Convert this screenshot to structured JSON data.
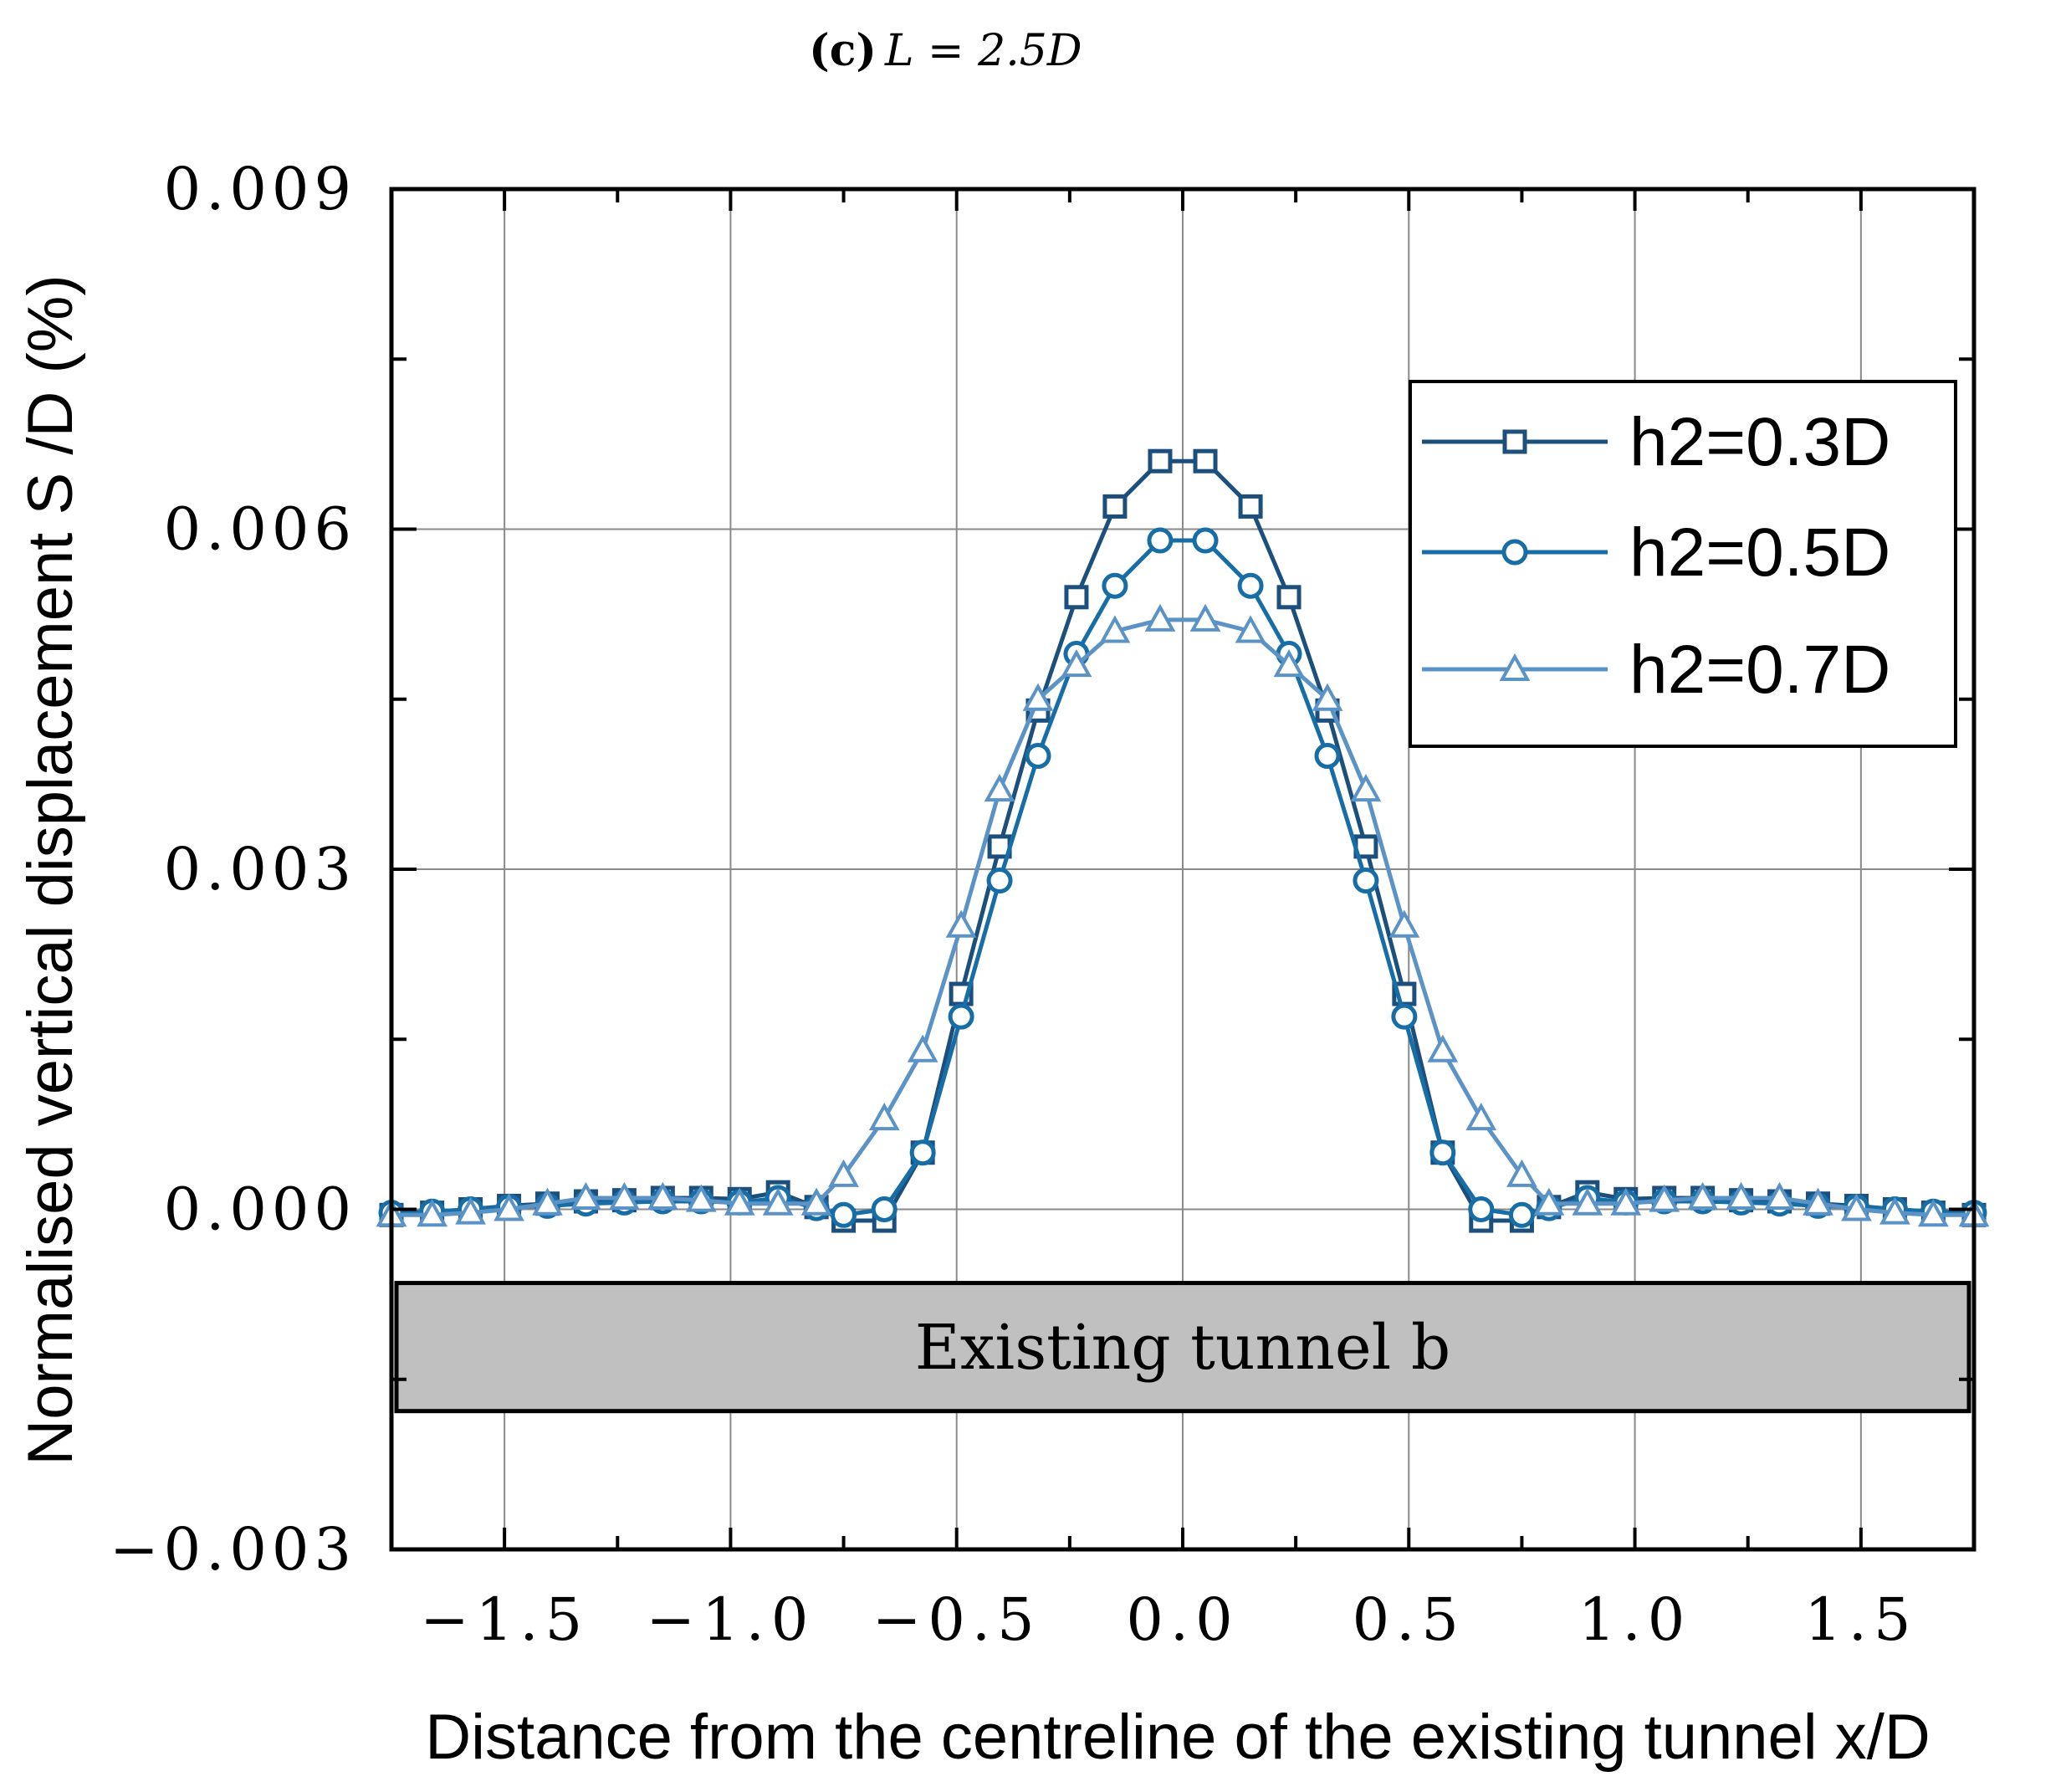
{
  "chart_data": {
    "type": "line",
    "title": {
      "panel": "(c)",
      "text": "L = 2.5D"
    },
    "xlabel": "Distance from the centreline of the existing tunnel x/D",
    "ylabel": "Normalised vertical displacement S /D (%)",
    "xlim": [
      -1.75,
      1.75
    ],
    "ylim": [
      -0.003,
      0.009
    ],
    "xticks": [
      -1.5,
      -1.0,
      -0.5,
      0.0,
      0.5,
      1.0,
      1.5
    ],
    "xtick_labels": [
      "−1.5",
      "−1.0",
      "−0.5",
      "0.0",
      "0.5",
      "1.0",
      "1.5"
    ],
    "yticks": [
      -0.003,
      0.0,
      0.003,
      0.006,
      0.009
    ],
    "ytick_labels": [
      "−0.003",
      "0.000",
      "0.003",
      "0.006",
      "0.009"
    ],
    "grid": true,
    "legend_position": "top-right",
    "annotation": {
      "text": "Existing tunnel b",
      "y_range": [
        -0.00178,
        -0.00065
      ]
    },
    "series": [
      {
        "name": "h2=0.3D",
        "color": "#1c4f7c",
        "marker": "square",
        "x": [
          -1.75,
          -1.66,
          -1.575,
          -1.49,
          -1.405,
          -1.32,
          -1.235,
          -1.15,
          -1.065,
          -0.98,
          -0.895,
          -0.81,
          -0.75,
          -0.66,
          -0.575,
          -0.49,
          -0.405,
          -0.32,
          -0.235,
          -0.15,
          -0.05,
          0.05,
          0.15,
          0.235,
          0.32,
          0.405,
          0.49,
          0.575,
          0.66,
          0.75,
          0.81,
          0.895,
          0.98,
          1.065,
          1.15,
          1.235,
          1.32,
          1.405,
          1.49,
          1.575,
          1.66,
          1.75
        ],
        "y": [
          -5e-05,
          -3e-05,
          0.0,
          3e-05,
          5e-05,
          7e-05,
          8e-05,
          0.0001,
          0.0001,
          9e-05,
          0.00015,
          2e-05,
          -0.0001,
          -0.0001,
          0.0005,
          0.0019,
          0.0032,
          0.0044,
          0.0054,
          0.0062,
          0.0066,
          0.0066,
          0.0062,
          0.0054,
          0.0044,
          0.0032,
          0.0019,
          0.0005,
          -0.0001,
          -0.0001,
          2e-05,
          0.00015,
          9e-05,
          0.0001,
          0.0001,
          8e-05,
          7e-05,
          5e-05,
          3e-05,
          0.0,
          -3e-05,
          -5e-05
        ]
      },
      {
        "name": "h2=0.5D",
        "color": "#176ea6",
        "marker": "circle",
        "x": [
          -1.75,
          -1.66,
          -1.575,
          -1.49,
          -1.405,
          -1.32,
          -1.235,
          -1.15,
          -1.065,
          -0.98,
          -0.895,
          -0.81,
          -0.75,
          -0.66,
          -0.575,
          -0.49,
          -0.405,
          -0.32,
          -0.235,
          -0.15,
          -0.05,
          0.05,
          0.15,
          0.235,
          0.32,
          0.405,
          0.49,
          0.575,
          0.66,
          0.75,
          0.81,
          0.895,
          0.98,
          1.065,
          1.15,
          1.235,
          1.32,
          1.405,
          1.49,
          1.575,
          1.66,
          1.75
        ],
        "y": [
          -3e-05,
          -2e-05,
          0.0,
          2e-05,
          3e-05,
          5e-05,
          6e-05,
          7e-05,
          7e-05,
          6e-05,
          0.0001,
          1e-05,
          -5e-05,
          0.0,
          0.0005,
          0.0017,
          0.0029,
          0.004,
          0.0049,
          0.0055,
          0.0059,
          0.0059,
          0.0055,
          0.0049,
          0.004,
          0.0029,
          0.0017,
          0.0005,
          0.0,
          -5e-05,
          1e-05,
          0.0001,
          6e-05,
          7e-05,
          7e-05,
          6e-05,
          5e-05,
          3e-05,
          2e-05,
          0.0,
          -2e-05,
          -3e-05
        ]
      },
      {
        "name": "h2=0.7D",
        "color": "#5b93c7",
        "marker": "triangle",
        "x": [
          -1.75,
          -1.66,
          -1.575,
          -1.49,
          -1.405,
          -1.32,
          -1.235,
          -1.15,
          -1.065,
          -0.98,
          -0.895,
          -0.81,
          -0.75,
          -0.66,
          -0.575,
          -0.49,
          -0.405,
          -0.32,
          -0.235,
          -0.15,
          -0.05,
          0.05,
          0.15,
          0.235,
          0.32,
          0.405,
          0.49,
          0.575,
          0.66,
          0.75,
          0.81,
          0.895,
          0.98,
          1.065,
          1.15,
          1.235,
          1.32,
          1.405,
          1.49,
          1.575,
          1.66,
          1.75
        ],
        "y": [
          -5e-05,
          -5e-05,
          -3e-05,
          0.0,
          5e-05,
          0.0001,
          0.0001,
          0.0001,
          8e-05,
          5e-05,
          5e-05,
          5e-05,
          0.0003,
          0.0008,
          0.0014,
          0.0025,
          0.0037,
          0.0045,
          0.0048,
          0.0051,
          0.0052,
          0.0052,
          0.0051,
          0.0048,
          0.0045,
          0.0037,
          0.0025,
          0.0014,
          0.0008,
          0.0003,
          5e-05,
          5e-05,
          5e-05,
          8e-05,
          0.0001,
          0.0001,
          0.0001,
          5e-05,
          0.0,
          -3e-05,
          -5e-05,
          -5e-05
        ]
      }
    ]
  }
}
